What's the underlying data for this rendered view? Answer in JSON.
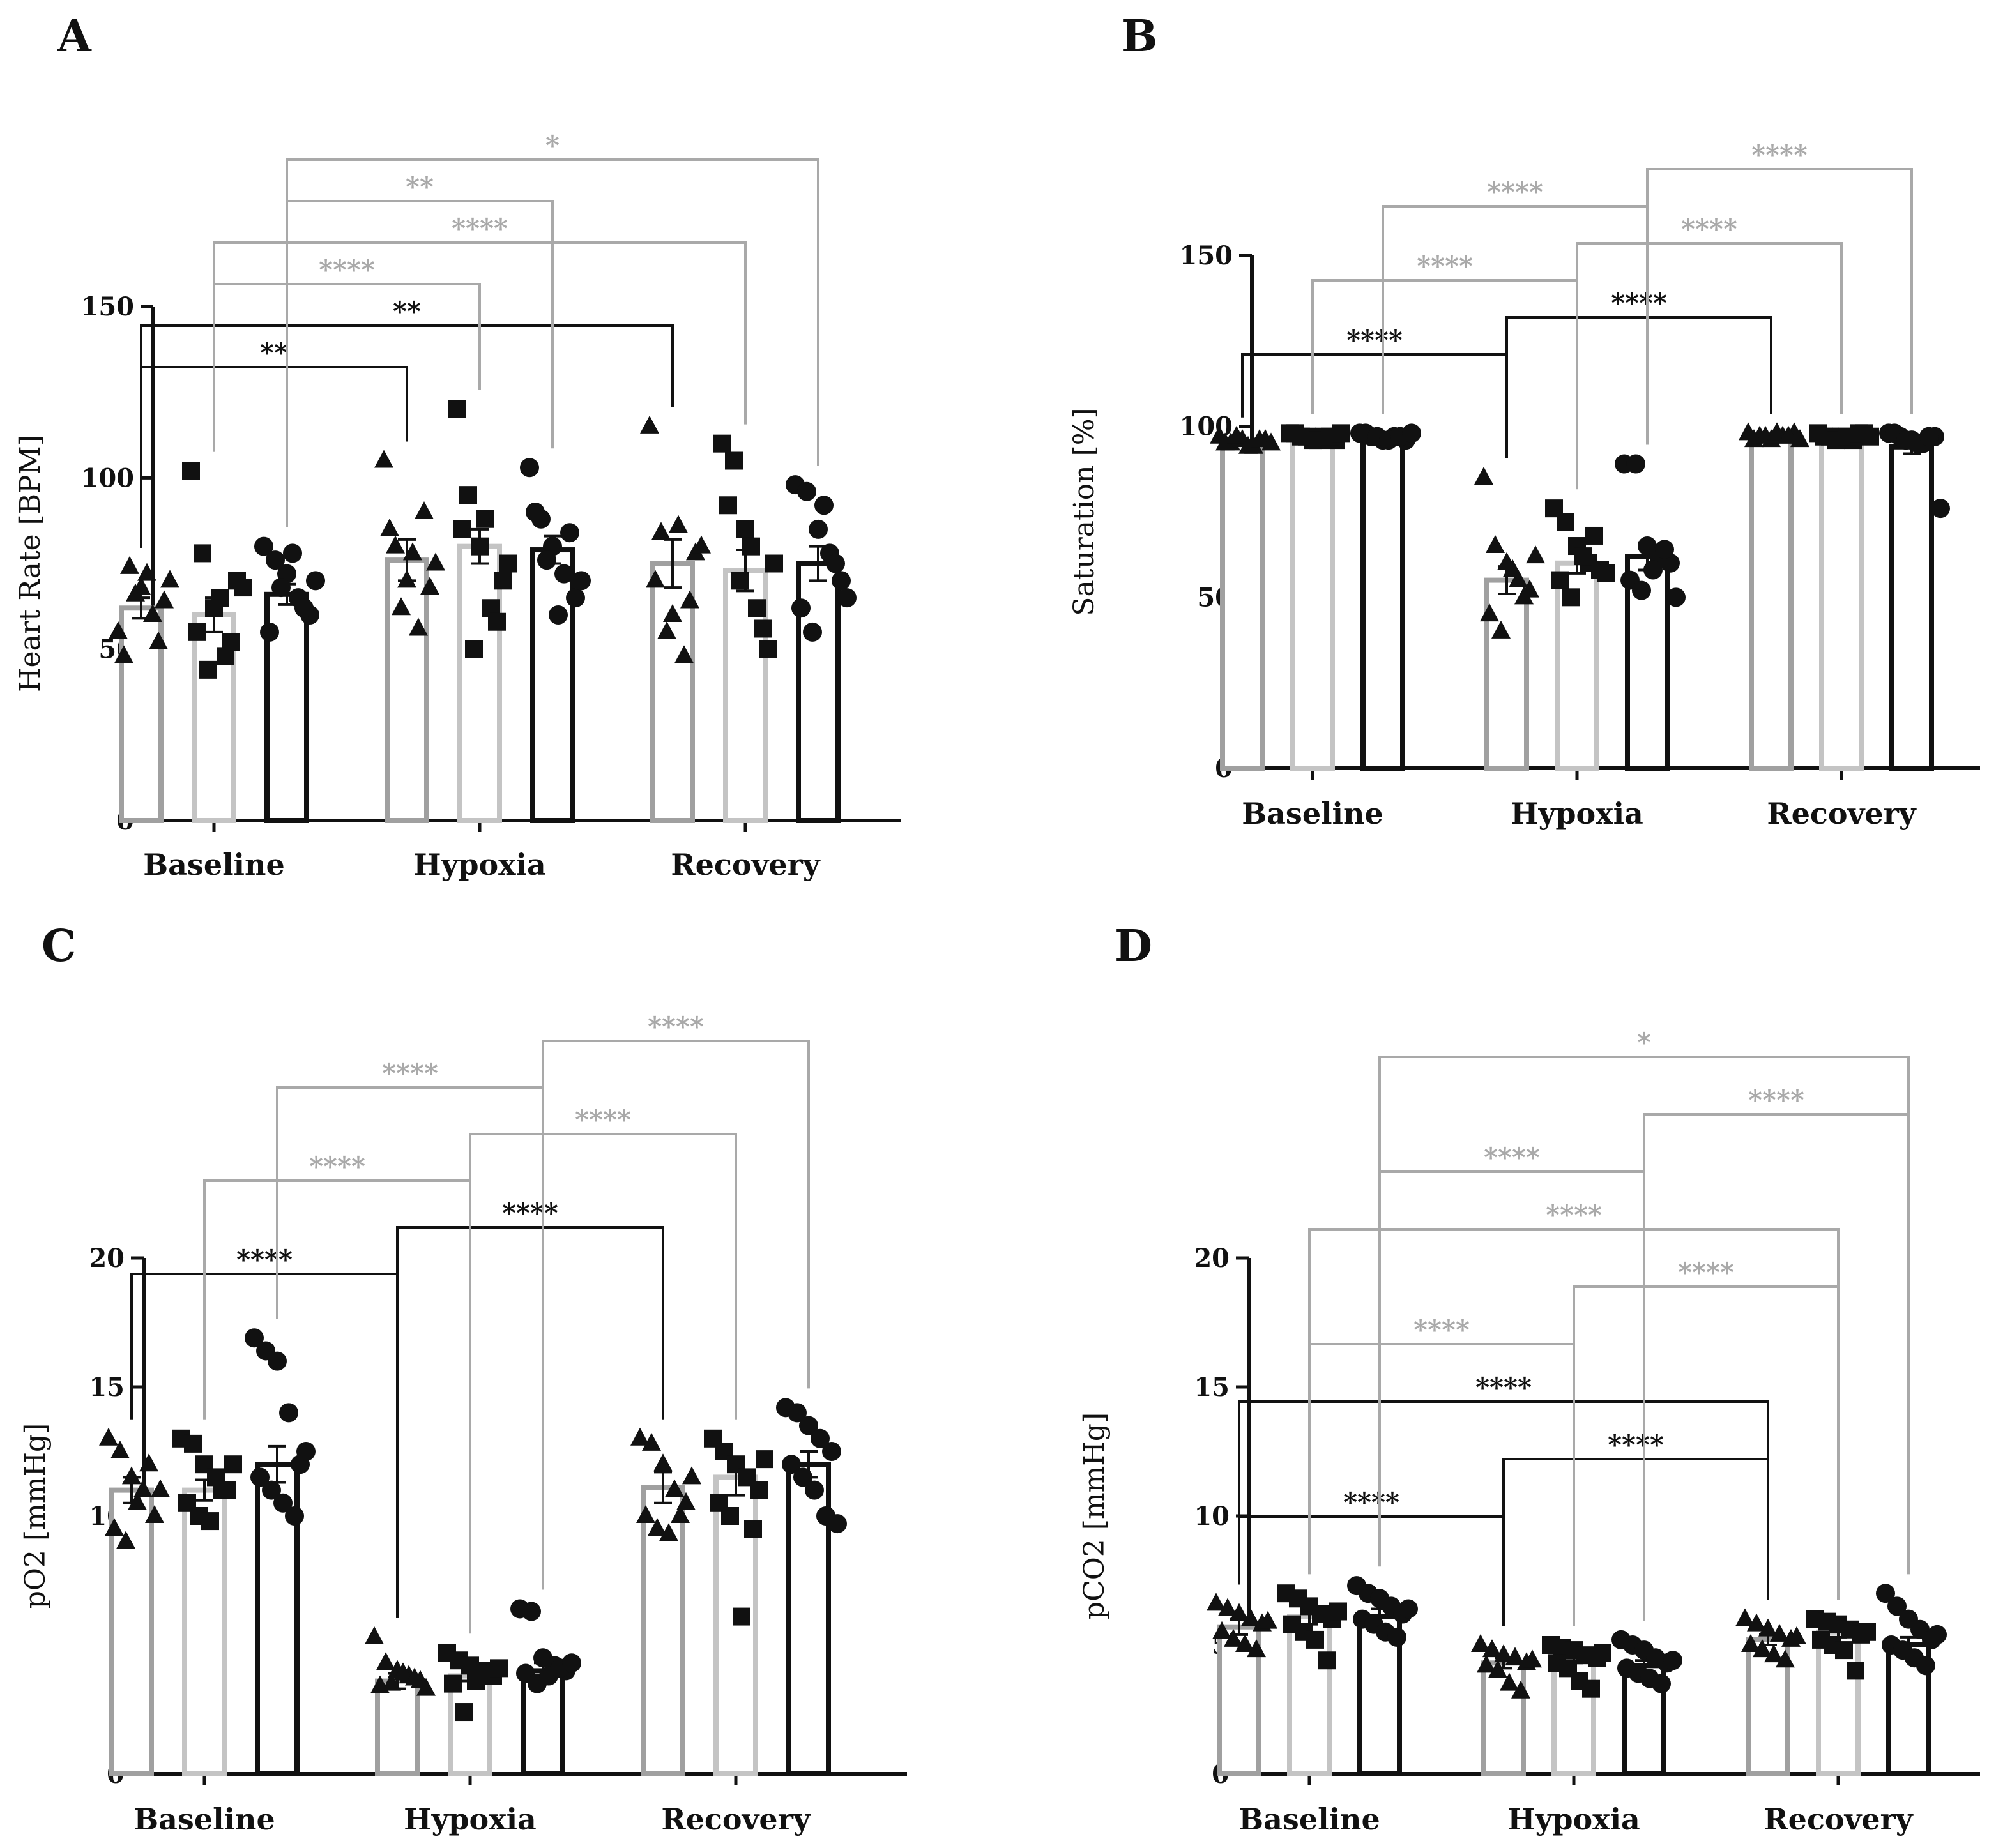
{
  "colors": {
    "group1": "#a0a0a0",
    "group2": "#c4c4c4",
    "group3": "#111111",
    "bracket_grey": "#a9a9a9",
    "bracket_black": "#111111"
  },
  "chart_data": [
    {
      "panel": "A",
      "type": "bar",
      "ylabel": "Heart Rate [BPM]",
      "ylim": [
        0,
        150
      ],
      "yticks": [
        "0",
        "50",
        "100",
        "150"
      ],
      "categories": [
        "Baseline",
        "Hypoxia",
        "Recovery"
      ],
      "series": [
        {
          "marker": "triangle",
          "values": [
            62,
            76,
            75
          ],
          "sem": [
            3,
            6,
            7
          ],
          "points": [
            [
              55,
              74,
              68,
              60,
              64,
              48,
              66,
              72,
              52,
              70
            ],
            [
              105,
              80,
              70,
              56,
              68,
              85,
              62,
              78,
              90,
              75
            ],
            [
              115,
              84,
              60,
              48,
              78,
              70,
              55,
              86,
              64,
              80
            ]
          ]
        },
        {
          "marker": "square",
          "values": [
            60,
            80,
            73
          ],
          "sem": [
            5,
            5,
            6
          ],
          "points": [
            [
              102,
              78,
              62,
              48,
              70,
              55,
              44,
              65,
              52,
              68
            ],
            [
              120,
              95,
              80,
              62,
              70,
              85,
              50,
              88,
              58,
              75
            ],
            [
              110,
              105,
              85,
              62,
              50,
              92,
              70,
              80,
              56,
              75
            ]
          ]
        },
        {
          "marker": "circle",
          "values": [
            66,
            79,
            75
          ],
          "sem": [
            3,
            4,
            5
          ],
          "points": [
            [
              80,
              76,
              72,
              65,
              60,
              55,
              68,
              78,
              62,
              70
            ],
            [
              103,
              88,
              80,
              72,
              65,
              90,
              76,
              60,
              84,
              70
            ],
            [
              98,
              96,
              85,
              78,
              70,
              62,
              55,
              92,
              75,
              65
            ]
          ]
        }
      ],
      "brackets": [
        {
          "label": "**",
          "color": "black",
          "from": [
            0,
            0
          ],
          "to": [
            1,
            0
          ]
        },
        {
          "label": "**",
          "color": "black",
          "from": [
            0,
            0
          ],
          "to": [
            2,
            0
          ]
        },
        {
          "label": "****",
          "color": "grey",
          "from": [
            0,
            1
          ],
          "to": [
            1,
            1
          ]
        },
        {
          "label": "****",
          "color": "grey",
          "from": [
            0,
            1
          ],
          "to": [
            2,
            1
          ]
        },
        {
          "label": "**",
          "color": "grey",
          "from": [
            0,
            2
          ],
          "to": [
            1,
            2
          ]
        },
        {
          "label": "*",
          "color": "grey",
          "from": [
            0,
            2
          ],
          "to": [
            2,
            2
          ]
        }
      ]
    },
    {
      "panel": "B",
      "type": "bar",
      "ylabel": "Saturation [%]",
      "ylim": [
        0,
        150
      ],
      "yticks": [
        "0",
        "50",
        "100",
        "150"
      ],
      "categories": [
        "Baseline",
        "Hypoxia",
        "Recovery"
      ],
      "series": [
        {
          "marker": "triangle",
          "values": [
            95,
            55,
            97
          ],
          "sem": [
            0.5,
            4,
            0.5
          ],
          "points": [
            [
              97,
              95,
              96,
              94,
              96,
              95,
              97,
              94,
              96,
              95
            ],
            [
              85,
              65,
              60,
              55,
              52,
              45,
              40,
              58,
              50,
              62
            ],
            [
              98,
              97,
              96,
              97,
              98,
              96,
              97,
              98,
              97,
              96
            ]
          ]
        },
        {
          "marker": "square",
          "values": [
            96,
            60,
            97
          ],
          "sem": [
            0.5,
            3,
            0.5
          ],
          "points": [
            [
              98,
              97,
              96,
              97,
              96,
              98,
              97,
              96,
              97,
              98
            ],
            [
              76,
              72,
              65,
              60,
              58,
              55,
              50,
              62,
              68,
              57
            ],
            [
              98,
              97,
              97,
              96,
              98,
              97,
              96,
              97,
              98,
              97
            ]
          ]
        },
        {
          "marker": "circle",
          "values": [
            96,
            62,
            94
          ],
          "sem": [
            0.5,
            4,
            2
          ],
          "points": [
            [
              98,
              97,
              96,
              97,
              96,
              98,
              97,
              96,
              97,
              98
            ],
            [
              89,
              89,
              65,
              62,
              60,
              55,
              52,
              58,
              64,
              50
            ],
            [
              98,
              97,
              96,
              95,
              97,
              98,
              96,
              95,
              97,
              76
            ]
          ]
        }
      ],
      "brackets": [
        {
          "label": "****",
          "color": "black",
          "from": [
            0,
            0
          ],
          "to": [
            1,
            0
          ]
        },
        {
          "label": "****",
          "color": "black",
          "from": [
            1,
            0
          ],
          "to": [
            2,
            0
          ]
        },
        {
          "label": "****",
          "color": "grey",
          "from": [
            0,
            1
          ],
          "to": [
            1,
            1
          ]
        },
        {
          "label": "****",
          "color": "grey",
          "from": [
            1,
            1
          ],
          "to": [
            2,
            1
          ]
        },
        {
          "label": "****",
          "color": "grey",
          "from": [
            0,
            2
          ],
          "to": [
            1,
            2
          ]
        },
        {
          "label": "****",
          "color": "grey",
          "from": [
            1,
            2
          ],
          "to": [
            2,
            2
          ]
        }
      ]
    },
    {
      "panel": "C",
      "type": "bar",
      "ylabel": "pO2 [mmHg]",
      "ylim": [
        0,
        20
      ],
      "yticks": [
        "0",
        "5",
        "10",
        "15",
        "20"
      ],
      "categories": [
        "Baseline",
        "Hypoxia",
        "Recovery"
      ],
      "series": [
        {
          "marker": "triangle",
          "values": [
            11,
            3.6,
            11.1
          ],
          "sem": [
            0.5,
            0.3,
            0.6
          ],
          "points": [
            [
              13,
              12.5,
              11.5,
              11,
              10,
              9.5,
              9,
              10.5,
              12,
              11
            ],
            [
              5.3,
              4.3,
              4,
              3.8,
              3.6,
              3.4,
              3.5,
              3.9,
              3.7,
              3.3
            ],
            [
              13,
              12.8,
              12,
              11,
              10.5,
              10,
              9.5,
              9.3,
              10,
              11.5
            ]
          ]
        },
        {
          "marker": "square",
          "values": [
            11,
            3.8,
            11.5
          ],
          "sem": [
            0.4,
            0.2,
            0.7
          ],
          "points": [
            [
              13,
              12.8,
              12,
              11.5,
              11,
              10.5,
              10,
              9.8,
              11,
              12
            ],
            [
              4.7,
              4.4,
              4.2,
              4,
              3.8,
              3.5,
              2.4,
              3.6,
              3.9,
              4.1
            ],
            [
              13,
              12.5,
              12,
              11.5,
              11,
              10.5,
              10,
              6.1,
              9.5,
              12.2
            ]
          ]
        },
        {
          "marker": "circle",
          "values": [
            12,
            4,
            12
          ],
          "sem": [
            0.7,
            0.3,
            0.5
          ],
          "points": [
            [
              16.9,
              16.4,
              16,
              14,
              12,
              11.5,
              11,
              10.5,
              10,
              12.5
            ],
            [
              6.4,
              6.3,
              4.5,
              4.2,
              4,
              3.9,
              3.5,
              3.8,
              4.1,
              4.3
            ],
            [
              14.2,
              14,
              13.5,
              13,
              12.5,
              12,
              11.5,
              11,
              10,
              9.7
            ]
          ]
        }
      ],
      "brackets": [
        {
          "label": "****",
          "color": "black",
          "from": [
            0,
            0
          ],
          "to": [
            1,
            0
          ]
        },
        {
          "label": "****",
          "color": "black",
          "from": [
            1,
            0
          ],
          "to": [
            2,
            0
          ]
        },
        {
          "label": "****",
          "color": "grey",
          "from": [
            0,
            1
          ],
          "to": [
            1,
            1
          ]
        },
        {
          "label": "****",
          "color": "grey",
          "from": [
            1,
            1
          ],
          "to": [
            2,
            1
          ]
        },
        {
          "label": "****",
          "color": "grey",
          "from": [
            0,
            2
          ],
          "to": [
            1,
            2
          ]
        },
        {
          "label": "****",
          "color": "grey",
          "from": [
            1,
            2
          ],
          "to": [
            2,
            2
          ]
        }
      ]
    },
    {
      "panel": "D",
      "type": "bar",
      "ylabel": "pCO2 [mmHg]",
      "ylim": [
        0,
        20
      ],
      "yticks": [
        "0",
        "5",
        "10",
        "15",
        "20"
      ],
      "categories": [
        "Baseline",
        "Hypoxia",
        "Recovery"
      ],
      "series": [
        {
          "marker": "triangle",
          "values": [
            5.7,
            4.3,
            5.2
          ],
          "sem": [
            0.3,
            0.2,
            0.2
          ],
          "points": [
            [
              6.6,
              6.4,
              6.2,
              6,
              5.8,
              5.5,
              5.2,
              5,
              4.8,
              5.9
            ],
            [
              5,
              4.8,
              4.6,
              4.5,
              4.3,
              4.2,
              4,
              3.5,
              3.2,
              4.4
            ],
            [
              6,
              5.8,
              5.6,
              5.4,
              5.2,
              5,
              4.8,
              4.6,
              4.4,
              5.3
            ]
          ]
        },
        {
          "marker": "square",
          "values": [
            6.1,
            4.5,
            5.5
          ],
          "sem": [
            0.3,
            0.2,
            0.2
          ],
          "points": [
            [
              7,
              6.8,
              6.5,
              6.2,
              6,
              5.8,
              5.5,
              5.2,
              4.4,
              6.3
            ],
            [
              5,
              4.9,
              4.8,
              4.6,
              4.5,
              4.3,
              4.1,
              3.6,
              3.3,
              4.7
            ],
            [
              6,
              5.9,
              5.8,
              5.6,
              5.4,
              5.2,
              5,
              4.8,
              4,
              5.5
            ]
          ]
        },
        {
          "marker": "circle",
          "values": [
            6.1,
            4.2,
            5
          ],
          "sem": [
            0.3,
            0.2,
            0.3
          ],
          "points": [
            [
              7.3,
              7,
              6.8,
              6.5,
              6.2,
              6,
              5.8,
              5.5,
              5.3,
              6.4
            ],
            [
              5.2,
              5,
              4.8,
              4.5,
              4.3,
              4.1,
              3.9,
              3.7,
              3.5,
              4.4
            ],
            [
              7,
              6.5,
              6,
              5.6,
              5.2,
              5,
              4.8,
              4.5,
              4.2,
              5.4
            ]
          ]
        }
      ],
      "brackets": [
        {
          "label": "****",
          "color": "black",
          "from": [
            0,
            0
          ],
          "to": [
            1,
            0
          ]
        },
        {
          "label": "****",
          "color": "black",
          "from": [
            1,
            0
          ],
          "to": [
            2,
            0
          ]
        },
        {
          "label": "****",
          "color": "black",
          "from": [
            0,
            0
          ],
          "to": [
            2,
            0
          ]
        },
        {
          "label": "****",
          "color": "grey",
          "from": [
            0,
            1
          ],
          "to": [
            1,
            1
          ]
        },
        {
          "label": "****",
          "color": "grey",
          "from": [
            1,
            1
          ],
          "to": [
            2,
            1
          ]
        },
        {
          "label": "****",
          "color": "grey",
          "from": [
            0,
            1
          ],
          "to": [
            2,
            1
          ]
        },
        {
          "label": "****",
          "color": "grey",
          "from": [
            0,
            2
          ],
          "to": [
            1,
            2
          ]
        },
        {
          "label": "****",
          "color": "grey",
          "from": [
            1,
            2
          ],
          "to": [
            2,
            2
          ]
        },
        {
          "label": "*",
          "color": "grey",
          "from": [
            0,
            2
          ],
          "to": [
            2,
            2
          ]
        }
      ]
    }
  ]
}
